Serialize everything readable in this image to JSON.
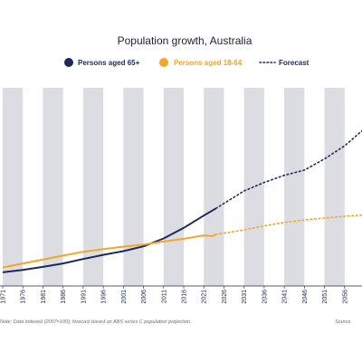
{
  "chart_data": {
    "type": "line",
    "title": "Population growth, Australia",
    "xlabel": "",
    "ylabel": "",
    "x_ticks": [
      "1971",
      "1976",
      "1981",
      "1986",
      "1991",
      "1996",
      "2001",
      "2006",
      "2011",
      "2016",
      "2021",
      "2026",
      "2031",
      "2036",
      "2041",
      "2046",
      "2051",
      "2056"
    ],
    "xlim": [
      1971,
      2061
    ],
    "ylim": [
      60,
      640
    ],
    "grid": "alternating vertical bands",
    "legend_position": "top",
    "series": [
      {
        "name": "Persons aged 65+",
        "color": "#1b2a5b",
        "style": "solid",
        "points": [
          [
            1971,
            100
          ],
          [
            1976,
            107
          ],
          [
            1981,
            116
          ],
          [
            1986,
            126
          ],
          [
            1991,
            139
          ],
          [
            1996,
            151
          ],
          [
            2001,
            162
          ],
          [
            2006,
            176
          ],
          [
            2011,
            199
          ],
          [
            2016,
            230
          ],
          [
            2021,
            266
          ],
          [
            2024,
            287
          ]
        ]
      },
      {
        "name": "Persons aged 18-64",
        "color": "#f4a628",
        "style": "solid",
        "points": [
          [
            1971,
            114
          ],
          [
            1976,
            126
          ],
          [
            1981,
            137
          ],
          [
            1986,
            149
          ],
          [
            1991,
            160
          ],
          [
            1996,
            168
          ],
          [
            2001,
            175
          ],
          [
            2006,
            181
          ],
          [
            2011,
            190
          ],
          [
            2016,
            198
          ],
          [
            2021,
            208
          ],
          [
            2023,
            206
          ],
          [
            2024,
            211
          ]
        ]
      },
      {
        "name": "Persons aged 65+ forecast",
        "color": "#1b2a5b",
        "style": "dotted",
        "points": [
          [
            2024,
            287
          ],
          [
            2031,
            338
          ],
          [
            2036,
            363
          ],
          [
            2041,
            384
          ],
          [
            2046,
            399
          ],
          [
            2051,
            432
          ],
          [
            2056,
            470
          ],
          [
            2061,
            521
          ]
        ]
      },
      {
        "name": "Persons aged 18-64 forecast",
        "color": "#f4a628",
        "style": "dotted",
        "points": [
          [
            2024,
            211
          ],
          [
            2031,
            224
          ],
          [
            2036,
            236
          ],
          [
            2041,
            246
          ],
          [
            2046,
            253
          ],
          [
            2051,
            259
          ],
          [
            2056,
            264
          ],
          [
            2061,
            268
          ]
        ]
      }
    ],
    "legend": [
      {
        "label": "Persons aged 65+",
        "color": "#1b2a5b",
        "marker": "dot"
      },
      {
        "label": "Persons aged 18-64",
        "color": "#f4a628",
        "marker": "dot"
      },
      {
        "label": "Forecast",
        "color": "#1b2a5b",
        "marker": "dotted-line"
      }
    ],
    "note": "Note: Data indexed (2007=100); forecast based on ABS series C population projection.",
    "source": "Source"
  }
}
